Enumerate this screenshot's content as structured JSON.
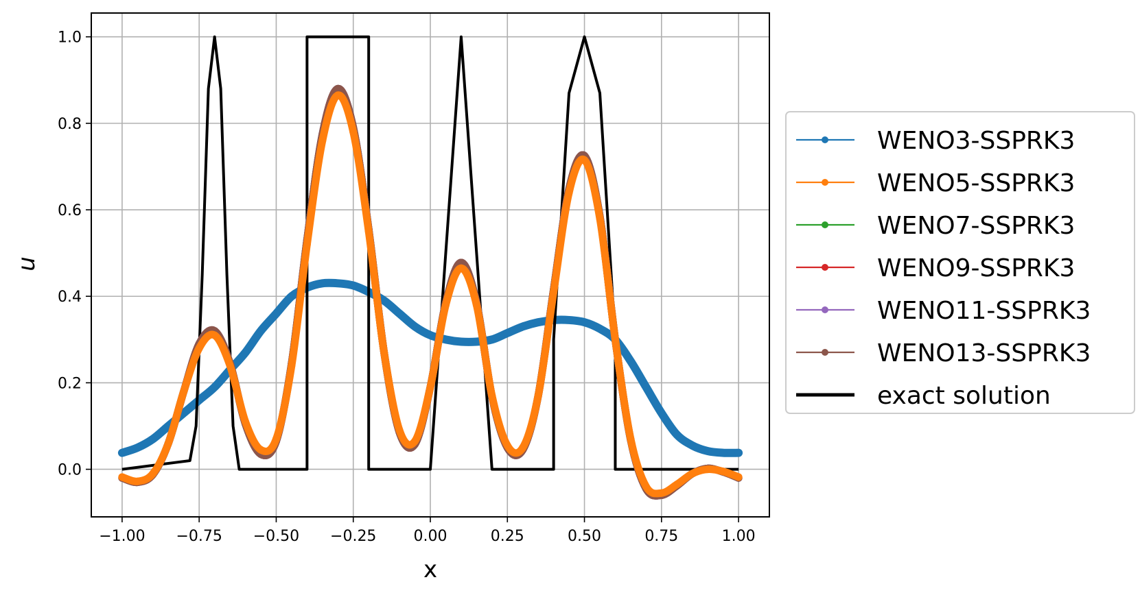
{
  "chart_data": {
    "type": "line",
    "title": "",
    "xlabel": "x",
    "ylabel": "u",
    "xlim": [
      -1.1,
      1.1
    ],
    "ylim": [
      -0.11,
      1.055
    ],
    "grid": true,
    "legend_placement": "outside-right",
    "x_ticks": [
      "−1.00",
      "−0.75",
      "−0.50",
      "−0.25",
      "0.00",
      "0.25",
      "0.50",
      "0.75",
      "1.00"
    ],
    "y_ticks": [
      "0.0",
      "0.2",
      "0.4",
      "0.6",
      "0.8",
      "1.0"
    ],
    "series": [
      {
        "name": "WENO3-SSPRK3",
        "color": "#1f77b4",
        "marker": "dot",
        "x": [
          -1.0,
          -0.95,
          -0.9,
          -0.85,
          -0.8,
          -0.75,
          -0.7,
          -0.65,
          -0.6,
          -0.55,
          -0.5,
          -0.45,
          -0.4,
          -0.35,
          -0.3,
          -0.25,
          -0.2,
          -0.15,
          -0.1,
          -0.05,
          0.0,
          0.05,
          0.1,
          0.15,
          0.2,
          0.25,
          0.3,
          0.35,
          0.4,
          0.45,
          0.5,
          0.55,
          0.6,
          0.65,
          0.7,
          0.75,
          0.8,
          0.85,
          0.9,
          0.95,
          1.0
        ],
        "y": [
          0.038,
          0.05,
          0.07,
          0.1,
          0.13,
          0.16,
          0.19,
          0.23,
          0.27,
          0.32,
          0.36,
          0.4,
          0.42,
          0.43,
          0.43,
          0.425,
          0.41,
          0.39,
          0.36,
          0.33,
          0.31,
          0.3,
          0.295,
          0.295,
          0.3,
          0.315,
          0.33,
          0.34,
          0.345,
          0.345,
          0.34,
          0.325,
          0.3,
          0.25,
          0.19,
          0.13,
          0.08,
          0.055,
          0.042,
          0.038,
          0.038
        ]
      },
      {
        "name": "WENO5-SSPRK3",
        "color": "#ff7f0e",
        "marker": "dot",
        "x": [
          -1.0,
          -0.95,
          -0.9,
          -0.85,
          -0.8,
          -0.75,
          -0.7,
          -0.65,
          -0.6,
          -0.55,
          -0.5,
          -0.45,
          -0.4,
          -0.35,
          -0.3,
          -0.25,
          -0.2,
          -0.15,
          -0.1,
          -0.05,
          0.0,
          0.05,
          0.1,
          0.15,
          0.2,
          0.25,
          0.3,
          0.35,
          0.4,
          0.45,
          0.5,
          0.55,
          0.6,
          0.65,
          0.7,
          0.75,
          0.8,
          0.85,
          0.9,
          0.95,
          1.0
        ],
        "y": [
          -0.018,
          -0.028,
          -0.01,
          0.06,
          0.18,
          0.28,
          0.31,
          0.24,
          0.11,
          0.045,
          0.07,
          0.24,
          0.52,
          0.76,
          0.865,
          0.78,
          0.55,
          0.27,
          0.09,
          0.065,
          0.19,
          0.38,
          0.465,
          0.38,
          0.17,
          0.055,
          0.05,
          0.17,
          0.41,
          0.64,
          0.715,
          0.58,
          0.3,
          0.07,
          -0.04,
          -0.055,
          -0.035,
          -0.01,
          0.0,
          -0.005,
          -0.018
        ]
      },
      {
        "name": "WENO7-SSPRK3",
        "color": "#2ca02c",
        "marker": "dot",
        "x": [
          -1.0,
          -0.95,
          -0.9,
          -0.85,
          -0.8,
          -0.75,
          -0.7,
          -0.65,
          -0.6,
          -0.55,
          -0.5,
          -0.45,
          -0.4,
          -0.35,
          -0.3,
          -0.25,
          -0.2,
          -0.15,
          -0.1,
          -0.05,
          0.0,
          0.05,
          0.1,
          0.15,
          0.2,
          0.25,
          0.3,
          0.35,
          0.4,
          0.45,
          0.5,
          0.55,
          0.6,
          0.65,
          0.7,
          0.75,
          0.8,
          0.85,
          0.9,
          0.95,
          1.0
        ],
        "y": [
          -0.02,
          -0.03,
          -0.012,
          0.06,
          0.18,
          0.29,
          0.32,
          0.245,
          0.105,
          0.035,
          0.065,
          0.245,
          0.53,
          0.775,
          0.88,
          0.79,
          0.555,
          0.27,
          0.085,
          0.058,
          0.19,
          0.385,
          0.478,
          0.385,
          0.168,
          0.05,
          0.045,
          0.17,
          0.415,
          0.648,
          0.725,
          0.585,
          0.3,
          0.068,
          -0.045,
          -0.06,
          -0.038,
          -0.01,
          0.002,
          -0.006,
          -0.02
        ]
      },
      {
        "name": "WENO9-SSPRK3",
        "color": "#d62728",
        "marker": "dot",
        "x": [
          -1.0,
          -0.95,
          -0.9,
          -0.85,
          -0.8,
          -0.75,
          -0.7,
          -0.65,
          -0.6,
          -0.55,
          -0.5,
          -0.45,
          -0.4,
          -0.35,
          -0.3,
          -0.25,
          -0.2,
          -0.15,
          -0.1,
          -0.05,
          0.0,
          0.05,
          0.1,
          0.15,
          0.2,
          0.25,
          0.3,
          0.35,
          0.4,
          0.45,
          0.5,
          0.55,
          0.6,
          0.65,
          0.7,
          0.75,
          0.8,
          0.85,
          0.9,
          0.95,
          1.0
        ],
        "y": [
          -0.02,
          -0.03,
          -0.012,
          0.06,
          0.18,
          0.29,
          0.32,
          0.245,
          0.105,
          0.035,
          0.065,
          0.245,
          0.53,
          0.775,
          0.88,
          0.79,
          0.555,
          0.27,
          0.085,
          0.058,
          0.19,
          0.385,
          0.478,
          0.385,
          0.168,
          0.05,
          0.045,
          0.17,
          0.415,
          0.648,
          0.725,
          0.585,
          0.3,
          0.068,
          -0.045,
          -0.06,
          -0.038,
          -0.01,
          0.002,
          -0.006,
          -0.02
        ]
      },
      {
        "name": "WENO11-SSPRK3",
        "color": "#9467bd",
        "marker": "dot",
        "x": [
          -1.0,
          -0.95,
          -0.9,
          -0.85,
          -0.8,
          -0.75,
          -0.7,
          -0.65,
          -0.6,
          -0.55,
          -0.5,
          -0.45,
          -0.4,
          -0.35,
          -0.3,
          -0.25,
          -0.2,
          -0.15,
          -0.1,
          -0.05,
          0.0,
          0.05,
          0.1,
          0.15,
          0.2,
          0.25,
          0.3,
          0.35,
          0.4,
          0.45,
          0.5,
          0.55,
          0.6,
          0.65,
          0.7,
          0.75,
          0.8,
          0.85,
          0.9,
          0.95,
          1.0
        ],
        "y": [
          -0.02,
          -0.03,
          -0.012,
          0.06,
          0.18,
          0.29,
          0.32,
          0.245,
          0.105,
          0.035,
          0.065,
          0.245,
          0.53,
          0.775,
          0.88,
          0.79,
          0.555,
          0.27,
          0.085,
          0.058,
          0.19,
          0.385,
          0.478,
          0.385,
          0.168,
          0.05,
          0.045,
          0.17,
          0.415,
          0.648,
          0.725,
          0.585,
          0.3,
          0.068,
          -0.045,
          -0.06,
          -0.038,
          -0.01,
          0.002,
          -0.006,
          -0.02
        ]
      },
      {
        "name": "WENO13-SSPRK3",
        "color": "#8c564b",
        "marker": "dot",
        "x": [
          -1.0,
          -0.95,
          -0.9,
          -0.85,
          -0.8,
          -0.75,
          -0.7,
          -0.65,
          -0.6,
          -0.55,
          -0.5,
          -0.45,
          -0.4,
          -0.35,
          -0.3,
          -0.25,
          -0.2,
          -0.15,
          -0.1,
          -0.05,
          0.0,
          0.05,
          0.1,
          0.15,
          0.2,
          0.25,
          0.3,
          0.35,
          0.4,
          0.45,
          0.5,
          0.55,
          0.6,
          0.65,
          0.7,
          0.75,
          0.8,
          0.85,
          0.9,
          0.95,
          1.0
        ],
        "y": [
          -0.02,
          -0.03,
          -0.012,
          0.06,
          0.18,
          0.29,
          0.32,
          0.245,
          0.105,
          0.035,
          0.065,
          0.245,
          0.53,
          0.775,
          0.88,
          0.79,
          0.555,
          0.27,
          0.085,
          0.058,
          0.19,
          0.385,
          0.478,
          0.385,
          0.168,
          0.05,
          0.045,
          0.17,
          0.415,
          0.648,
          0.725,
          0.585,
          0.3,
          0.068,
          -0.045,
          -0.06,
          -0.038,
          -0.01,
          0.002,
          -0.006,
          -0.02
        ]
      },
      {
        "name": "exact solution",
        "color": "#000000",
        "marker": "none",
        "x": [
          -1.0,
          -0.78,
          -0.76,
          -0.74,
          -0.72,
          -0.7,
          -0.68,
          -0.66,
          -0.64,
          -0.62,
          -0.4,
          -0.4,
          -0.2,
          -0.2,
          0.0,
          0.1,
          0.2,
          0.4,
          0.4,
          0.45,
          0.5,
          0.55,
          0.6,
          0.6,
          1.0
        ],
        "y": [
          0.0,
          0.02,
          0.1,
          0.45,
          0.88,
          1.0,
          0.88,
          0.45,
          0.1,
          0.0,
          0.0,
          1.0,
          1.0,
          0.0,
          0.0,
          1.0,
          0.0,
          0.0,
          0.3,
          0.87,
          1.0,
          0.87,
          0.3,
          0.0,
          0.0
        ]
      }
    ]
  }
}
